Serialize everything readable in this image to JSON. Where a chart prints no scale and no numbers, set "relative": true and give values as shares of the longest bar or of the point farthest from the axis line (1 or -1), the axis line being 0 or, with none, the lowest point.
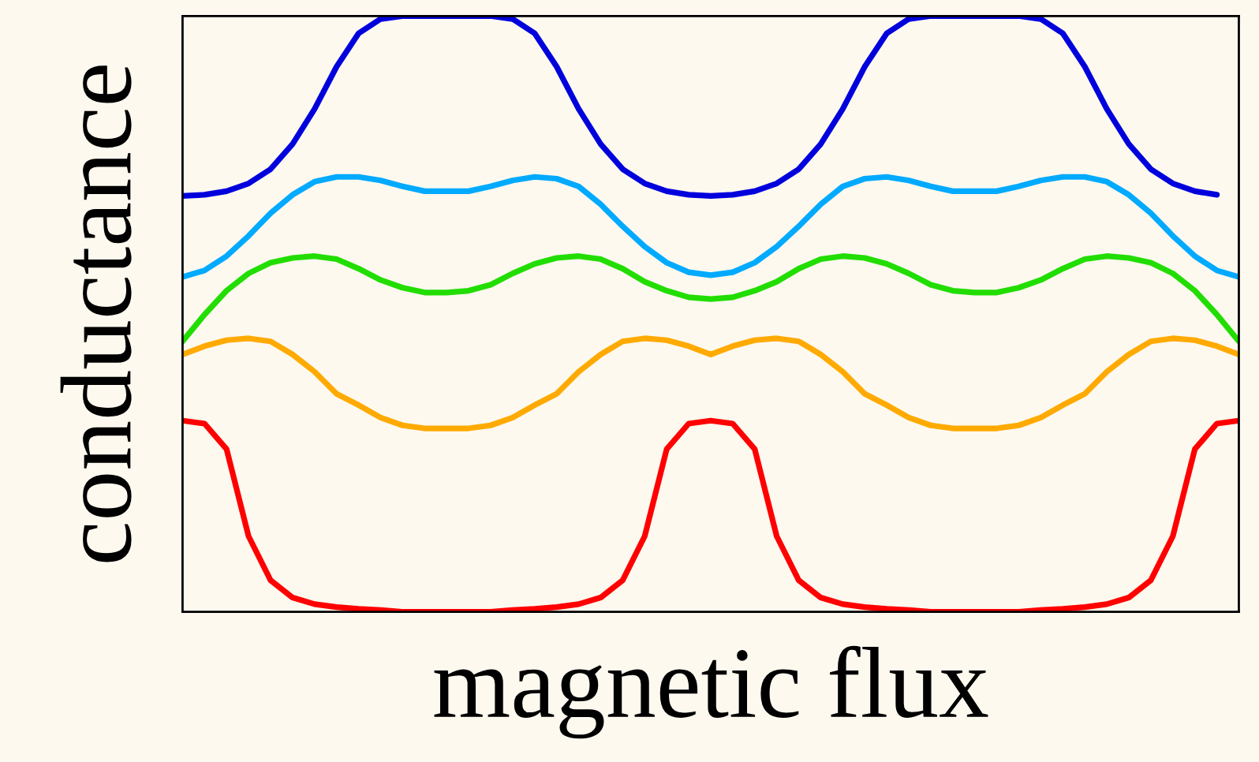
{
  "chart_data": {
    "type": "line",
    "xlabel": "magnetic flux",
    "ylabel": "conductance",
    "relative": true,
    "categories": [
      null,
      null,
      null,
      null,
      null,
      null,
      null,
      null,
      null,
      null,
      null,
      null,
      null,
      null,
      null,
      null,
      null,
      null,
      null,
      null,
      null,
      null,
      null,
      null,
      null,
      null,
      null,
      null,
      null,
      null,
      null,
      null,
      null,
      null,
      null,
      null,
      null,
      null,
      null,
      null,
      null,
      null,
      null,
      null,
      null,
      null,
      null,
      null,
      null
    ],
    "series": [
      {
        "color": "#0000dd",
        "values": [
          0.698,
          0.7,
          0.706,
          0.719,
          0.743,
          0.785,
          0.844,
          0.915,
          0.971,
          0.995,
          1,
          1,
          1,
          1,
          1,
          0.995,
          0.971,
          0.915,
          0.844,
          0.785,
          0.743,
          0.719,
          0.706,
          0.7,
          0.698,
          0.7,
          0.706,
          0.719,
          0.743,
          0.785,
          0.844,
          0.915,
          0.971,
          0.995,
          1,
          1,
          1,
          1,
          1,
          0.995,
          0.971,
          0.915,
          0.844,
          0.785,
          0.743,
          0.719,
          0.706,
          0.7,
          null
        ]
      },
      {
        "color": "#00aaff",
        "values": [
          0.562,
          0.573,
          0.597,
          0.631,
          0.669,
          0.7,
          0.722,
          0.73,
          0.73,
          0.724,
          0.714,
          0.706,
          0.706,
          0.706,
          0.714,
          0.724,
          0.73,
          0.727,
          0.714,
          0.684,
          0.647,
          0.613,
          0.586,
          0.57,
          0.565,
          0.57,
          0.586,
          0.613,
          0.647,
          0.684,
          0.714,
          0.727,
          0.73,
          0.724,
          0.714,
          0.706,
          0.706,
          0.706,
          0.714,
          0.724,
          0.73,
          0.73,
          0.722,
          0.7,
          0.669,
          0.631,
          0.597,
          0.573,
          0.562
        ]
      },
      {
        "color": "#22dd00",
        "values": [
          0.454,
          0.499,
          0.539,
          0.568,
          0.586,
          0.594,
          0.597,
          0.592,
          0.576,
          0.557,
          0.544,
          0.536,
          0.536,
          0.539,
          0.549,
          0.568,
          0.584,
          0.594,
          0.597,
          0.592,
          0.576,
          0.554,
          0.539,
          0.528,
          0.525,
          0.528,
          0.539,
          0.554,
          0.576,
          0.592,
          0.597,
          0.594,
          0.584,
          0.568,
          0.549,
          0.539,
          0.536,
          0.536,
          0.544,
          0.557,
          0.576,
          0.592,
          0.597,
          0.594,
          0.586,
          0.568,
          0.539,
          0.499,
          0.454
        ]
      },
      {
        "color": "#ffaa00",
        "values": [
          0.432,
          0.446,
          0.456,
          0.459,
          0.454,
          0.432,
          0.403,
          0.366,
          0.347,
          0.326,
          0.313,
          0.308,
          0.308,
          0.308,
          0.313,
          0.326,
          0.347,
          0.366,
          0.403,
          0.432,
          0.454,
          0.459,
          0.456,
          0.446,
          0.432,
          0.446,
          0.456,
          0.459,
          0.454,
          0.432,
          0.403,
          0.366,
          0.347,
          0.326,
          0.313,
          0.308,
          0.308,
          0.308,
          0.313,
          0.326,
          0.347,
          0.366,
          0.403,
          0.432,
          0.454,
          0.459,
          0.456,
          0.446,
          0.432
        ]
      },
      {
        "color": "#ff0000",
        "values": [
          0.321,
          0.316,
          0.273,
          0.127,
          0.053,
          0.024,
          0.013,
          0.008,
          0.005,
          0.003,
          0,
          0,
          0,
          0,
          0,
          0.003,
          0.005,
          0.008,
          0.013,
          0.024,
          0.053,
          0.127,
          0.273,
          0.316,
          0.321,
          0.316,
          0.273,
          0.127,
          0.053,
          0.024,
          0.013,
          0.008,
          0.005,
          0.003,
          0,
          0,
          0,
          0,
          0,
          0.003,
          0.005,
          0.008,
          0.013,
          0.024,
          0.053,
          0.127,
          0.273,
          0.316,
          0.321
        ]
      }
    ]
  }
}
